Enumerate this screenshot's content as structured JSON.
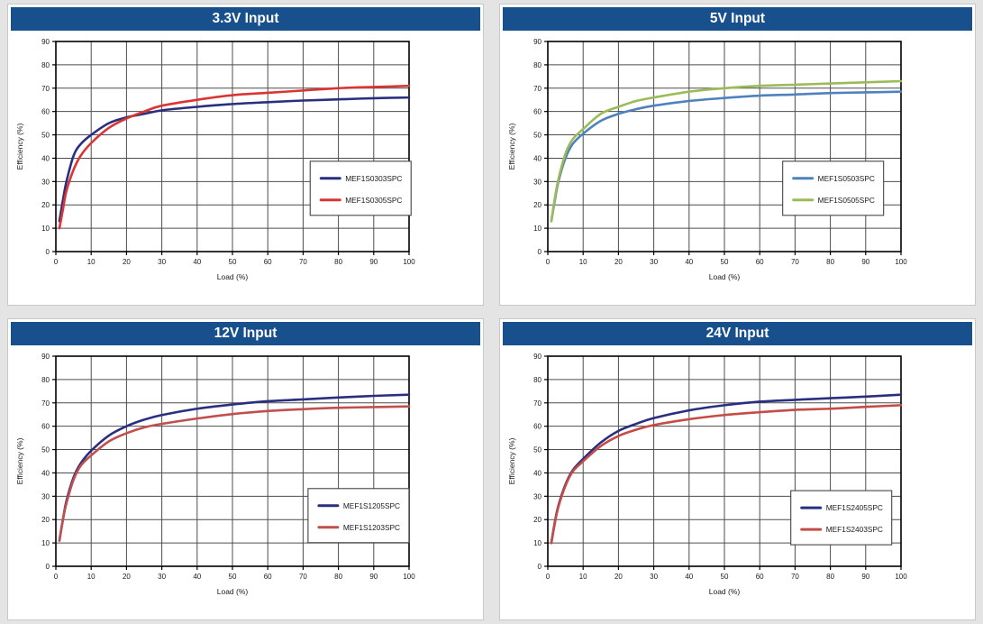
{
  "colors": {
    "header_bar": "#18508e",
    "page_bg": "#e4e4e5",
    "panel_border": "#c8c8c8",
    "grid_line": "#4d4d4d",
    "axis_frame": "#000000"
  },
  "chart_data": [
    {
      "type": "line",
      "title": "3.3V Input",
      "xlabel": "Load (%)",
      "ylabel": "Efficiency (%)",
      "xlim": [
        0,
        100
      ],
      "ylim": [
        0,
        90
      ],
      "xticks": [
        0,
        10,
        20,
        30,
        40,
        50,
        60,
        70,
        80,
        90,
        100
      ],
      "yticks": [
        0,
        10,
        20,
        30,
        40,
        50,
        60,
        70,
        80,
        90
      ],
      "grid": true,
      "legend_position": "inset-lower-right",
      "legend_pos": {
        "fx": 0.72,
        "fy": 0.57
      },
      "x": [
        1,
        2,
        3,
        5,
        7,
        10,
        15,
        20,
        25,
        30,
        40,
        50,
        60,
        70,
        80,
        90,
        100
      ],
      "series": [
        {
          "name": "MEF1S0303SPC",
          "color": "#2a2e7f",
          "values": [
            13,
            22,
            30,
            41,
            46,
            50,
            55,
            57.5,
            59,
            60.5,
            62,
            63.2,
            64,
            64.7,
            65.2,
            65.7,
            66
          ]
        },
        {
          "name": "MEF1S0305SPC",
          "color": "#d93534",
          "values": [
            10,
            18,
            26,
            35,
            41,
            46.5,
            53,
            57,
            60,
            62.5,
            65,
            67,
            68,
            69,
            70,
            70.5,
            71
          ]
        }
      ]
    },
    {
      "type": "line",
      "title": "5V Input",
      "xlabel": "Load (%)",
      "ylabel": "Efficiency (%)",
      "xlim": [
        0,
        100
      ],
      "ylim": [
        0,
        90
      ],
      "xticks": [
        0,
        10,
        20,
        30,
        40,
        50,
        60,
        70,
        80,
        90,
        100
      ],
      "yticks": [
        0,
        10,
        20,
        30,
        40,
        50,
        60,
        70,
        80,
        90
      ],
      "grid": true,
      "legend_position": "inset-lower-right",
      "legend_pos": {
        "fx": 0.665,
        "fy": 0.57
      },
      "x": [
        1,
        2,
        3,
        5,
        7,
        10,
        15,
        20,
        25,
        30,
        40,
        50,
        60,
        70,
        80,
        90,
        100
      ],
      "series": [
        {
          "name": "MEF1S0503SPC",
          "color": "#4f81bd",
          "values": [
            13,
            22,
            30,
            40,
            46,
            50.5,
            56,
            59,
            61,
            62.5,
            64.5,
            65.8,
            66.8,
            67.3,
            67.9,
            68.2,
            68.5
          ]
        },
        {
          "name": "MEF1S0505SPC",
          "color": "#9bbb59",
          "values": [
            13,
            23,
            31,
            42,
            48,
            52.5,
            59,
            62,
            64.5,
            66,
            68.5,
            70,
            71,
            71.5,
            72,
            72.5,
            73
          ]
        }
      ]
    },
    {
      "type": "line",
      "title": "12V Input",
      "xlabel": "Load (%)",
      "ylabel": "Efficiency (%)",
      "xlim": [
        0,
        100
      ],
      "ylim": [
        0,
        90
      ],
      "xticks": [
        0,
        10,
        20,
        30,
        40,
        50,
        60,
        70,
        80,
        90,
        100
      ],
      "yticks": [
        0,
        10,
        20,
        30,
        40,
        50,
        60,
        70,
        80,
        90
      ],
      "grid": true,
      "legend_position": "inset-lower-right",
      "legend_pos": {
        "fx": 0.714,
        "fy": 0.63
      },
      "x": [
        1,
        2,
        3,
        5,
        7,
        10,
        15,
        20,
        25,
        30,
        40,
        50,
        60,
        70,
        80,
        90,
        100
      ],
      "series": [
        {
          "name": "MEF1S1205SPC",
          "color": "#2a2e7f",
          "values": [
            11,
            20,
            28,
            38,
            44,
            49.5,
            56,
            60,
            62.8,
            64.8,
            67.5,
            69.3,
            70.7,
            71.5,
            72.3,
            73,
            73.5
          ]
        },
        {
          "name": "MEF1S1203SPC",
          "color": "#c0504d",
          "values": [
            11,
            20,
            27,
            37,
            43,
            47.5,
            53.5,
            57,
            59.5,
            61,
            63.3,
            65.2,
            66.5,
            67.3,
            67.9,
            68.2,
            68.5
          ]
        }
      ]
    },
    {
      "type": "line",
      "title": "24V Input",
      "xlabel": "Load (%)",
      "ylabel": "Efficiency (%)",
      "xlim": [
        0,
        100
      ],
      "ylim": [
        0,
        90
      ],
      "xticks": [
        0,
        10,
        20,
        30,
        40,
        50,
        60,
        70,
        80,
        90,
        100
      ],
      "yticks": [
        0,
        10,
        20,
        30,
        40,
        50,
        60,
        70,
        80,
        90
      ],
      "grid": true,
      "legend_position": "inset-lower-right",
      "legend_pos": {
        "fx": 0.688,
        "fy": 0.64
      },
      "x": [
        1,
        2,
        3,
        5,
        7,
        10,
        15,
        20,
        25,
        30,
        40,
        50,
        60,
        70,
        80,
        90,
        100
      ],
      "series": [
        {
          "name": "MEF1S2405SPC",
          "color": "#2a2e7f",
          "values": [
            10,
            19,
            26,
            35,
            41,
            46,
            53,
            58,
            61,
            63.5,
            66.8,
            69,
            70.5,
            71.3,
            72,
            72.7,
            73.5
          ]
        },
        {
          "name": "MEF1S2403SPC",
          "color": "#c44b46",
          "values": [
            10,
            18.5,
            25.5,
            34.5,
            40.5,
            45,
            51.5,
            55.8,
            58.5,
            60.5,
            63,
            64.8,
            66,
            67,
            67.5,
            68.3,
            69
          ]
        }
      ]
    }
  ]
}
